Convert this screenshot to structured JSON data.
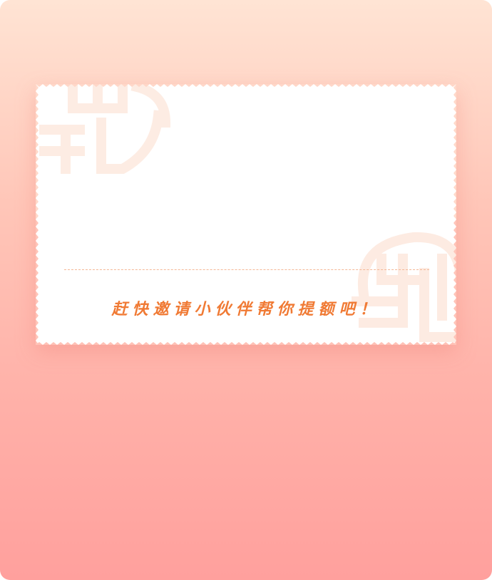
{
  "ticket": {
    "slogan": "赶快邀请小伙伴帮你提额吧！"
  },
  "colors": {
    "background_top": "#ffe4d4",
    "background_bottom": "#ffa09d",
    "ticket_fill": "#ffffff",
    "slogan_text": "#f07a34",
    "divider": "#f4b796",
    "watermark": "#fff0e8"
  },
  "icons": {
    "watermark_top_left": "fu-character-pattern-icon",
    "watermark_bottom_right": "fu-character-pattern-icon"
  }
}
